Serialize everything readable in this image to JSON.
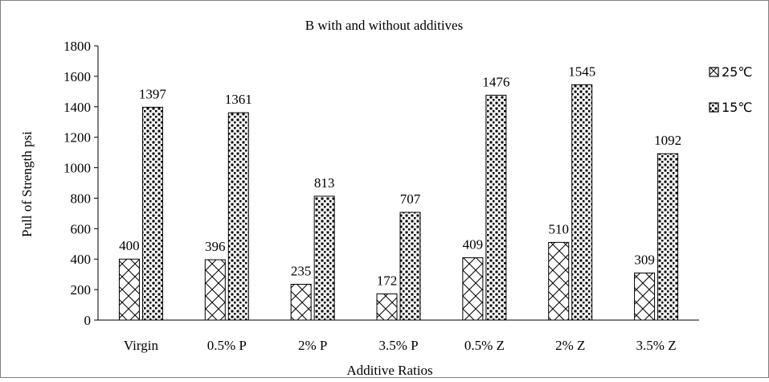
{
  "chart_data": {
    "type": "bar",
    "title": "B with and without additives",
    "xlabel": "Additive Ratios",
    "ylabel": "Pull of Strength psi",
    "categories": [
      "Virgin",
      "0.5% P",
      "2% P",
      "3.5% P",
      "0.5% Z",
      "2% Z",
      "3.5% Z"
    ],
    "series": [
      {
        "name": "25℃",
        "values": [
          400,
          396,
          235,
          172,
          409,
          510,
          309
        ],
        "pattern": "crosshatch"
      },
      {
        "name": "15℃",
        "values": [
          1397,
          1361,
          813,
          707,
          1476,
          1545,
          1092
        ],
        "pattern": "dots"
      }
    ],
    "ylim": [
      0,
      1800
    ],
    "yticks": [
      0,
      200,
      400,
      600,
      800,
      1000,
      1200,
      1400,
      1600,
      1800
    ],
    "grid": false,
    "legend_position": "right"
  }
}
